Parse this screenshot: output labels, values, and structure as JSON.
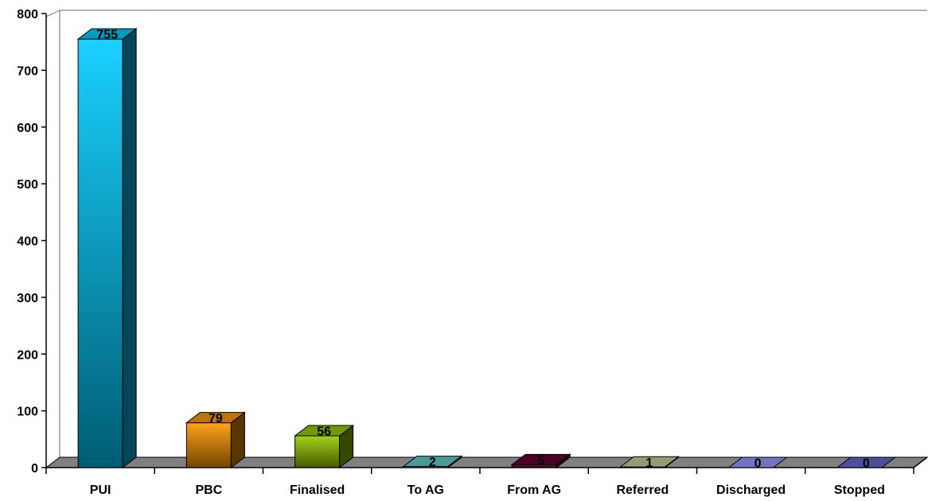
{
  "chart_data": {
    "type": "bar",
    "title": "",
    "xlabel": "",
    "ylabel": "",
    "ylim": [
      0,
      800
    ],
    "yticks": [
      0,
      100,
      200,
      300,
      400,
      500,
      600,
      700,
      800
    ],
    "grid": false,
    "legend": "none",
    "categories": [
      "PUI",
      "PBC",
      "Finalised",
      "To AG",
      "From AG",
      "Referred",
      "Discharged",
      "Stopped"
    ],
    "values": [
      755,
      79,
      56,
      2,
      5,
      1,
      0,
      0
    ],
    "data_labels": [
      "755",
      "79",
      "56",
      "2",
      "5",
      "1",
      "0",
      "0"
    ],
    "colors": [
      "#00CCFF",
      "#FF9900",
      "#99CC00",
      "#66CCCC",
      "#660033",
      "#CCCC99",
      "#9999FF",
      "#6666CC"
    ]
  }
}
